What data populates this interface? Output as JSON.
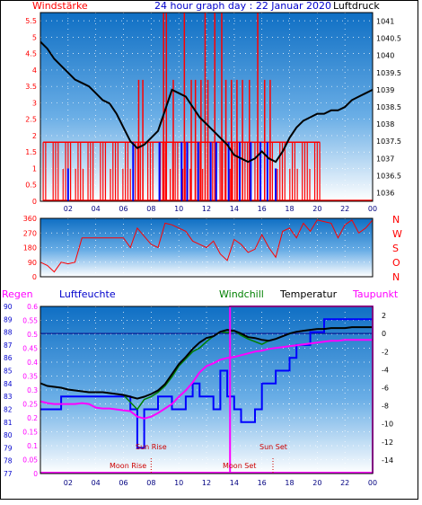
{
  "header": {
    "wind_label": "Windstärke",
    "title": "24 hour graph day : 22 Januar 2020",
    "pressure_label": "Luftdruck"
  },
  "legend": {
    "rain": "Regen",
    "humidity": "Luftfeuchte",
    "windchill": "Windchill",
    "temperature": "Temperatur",
    "dewpoint": "Taupunkt"
  },
  "direction_labels": [
    "N",
    "W",
    "S",
    "O",
    "N"
  ],
  "annotations": {
    "moon_rise": "Moon Rise",
    "sun_rise": "Sun Rise",
    "moon_set": "Moon Set",
    "sun_set": "Sun Set"
  },
  "colors": {
    "wind_speed": "#ff0000",
    "wind_gust": "#0000ff",
    "pressure": "#000000",
    "direction": "#ff0000",
    "humidity": "#0000ff",
    "temperature": "#000000",
    "windchill": "#008000",
    "dewpoint": "#ff00ff",
    "rain": "#ff00ff",
    "humidity_legend": "#0000ff"
  },
  "chart_data": [
    {
      "type": "line",
      "name": "wind-pressure",
      "x_ticks": [
        "02",
        "04",
        "06",
        "08",
        "10",
        "12",
        "14",
        "16",
        "18",
        "20",
        "22",
        "00"
      ],
      "y_left_ticks": [
        "0",
        "0.5",
        "1",
        "1.5",
        "2",
        "2.5",
        "3",
        "3.5",
        "4",
        "4.5",
        "5",
        "5.5"
      ],
      "y_left_range": [
        0,
        5.75
      ],
      "y_right_ticks": [
        "1036",
        "1036.5",
        "1037",
        "1037.5",
        "1038",
        "1038.5",
        "1039",
        "1039.5",
        "1040",
        "1040.5",
        "1041"
      ],
      "y_right_range": [
        1035.75,
        1041.25
      ],
      "pressure": {
        "x": [
          0,
          0.5,
          1,
          1.5,
          2,
          2.5,
          3,
          3.5,
          4,
          4.5,
          5,
          5.5,
          6,
          6.5,
          7,
          7.5,
          8,
          8.5,
          9,
          9.5,
          10,
          10.5,
          11,
          11.5,
          12,
          12.5,
          13,
          13.5,
          14,
          14.5,
          15,
          15.5,
          16,
          16.5,
          17,
          17.5,
          18,
          18.5,
          19,
          19.5,
          20,
          20.5,
          21,
          21.5,
          22,
          22.5,
          23,
          23.5,
          24
        ],
        "values": [
          1040.4,
          1040.2,
          1039.9,
          1039.7,
          1039.5,
          1039.3,
          1039.2,
          1039.1,
          1038.9,
          1038.7,
          1038.6,
          1038.3,
          1037.9,
          1037.5,
          1037.3,
          1037.4,
          1037.6,
          1037.8,
          1038.4,
          1039.0,
          1038.9,
          1038.8,
          1038.5,
          1038.2,
          1038.0,
          1037.8,
          1037.6,
          1037.4,
          1037.1,
          1037.0,
          1036.9,
          1037.0,
          1037.2,
          1037.0,
          1036.9,
          1037.2,
          1037.6,
          1037.9,
          1038.1,
          1038.2,
          1038.3,
          1038.3,
          1038.4,
          1038.4,
          1038.5,
          1038.7,
          1038.8,
          1038.9,
          1039.0
        ]
      },
      "wind_base_level": 1.8,
      "wind_spikes": [
        {
          "x": 8.9,
          "value": 5.75
        },
        {
          "x": 9.1,
          "value": 5.75
        },
        {
          "x": 10.4,
          "value": 5.75
        },
        {
          "x": 11.9,
          "value": 5.75
        },
        {
          "x": 12.6,
          "value": 5.75
        },
        {
          "x": 13.1,
          "value": 5.75
        },
        {
          "x": 15.7,
          "value": 5.75
        },
        {
          "x": 7.1,
          "value": 3.7
        },
        {
          "x": 7.4,
          "value": 3.7
        },
        {
          "x": 9.6,
          "value": 3.7
        },
        {
          "x": 10.9,
          "value": 3.7
        },
        {
          "x": 11.2,
          "value": 3.7
        },
        {
          "x": 11.6,
          "value": 3.7
        },
        {
          "x": 12.1,
          "value": 3.7
        },
        {
          "x": 13.4,
          "value": 3.7
        },
        {
          "x": 13.8,
          "value": 3.7
        },
        {
          "x": 14.2,
          "value": 3.7
        },
        {
          "x": 14.6,
          "value": 3.7
        },
        {
          "x": 15.1,
          "value": 3.7
        },
        {
          "x": 16.2,
          "value": 3.7
        },
        {
          "x": 16.6,
          "value": 3.7
        }
      ],
      "gust_spikes": [
        {
          "x": 2.0,
          "value": 1.0
        },
        {
          "x": 6.7,
          "value": 1.8
        },
        {
          "x": 8.6,
          "value": 1.8
        },
        {
          "x": 10.2,
          "value": 1.8
        },
        {
          "x": 10.6,
          "value": 1.8
        },
        {
          "x": 11.4,
          "value": 1.8
        },
        {
          "x": 12.3,
          "value": 1.8
        },
        {
          "x": 12.7,
          "value": 1.8
        },
        {
          "x": 13.6,
          "value": 1.8
        },
        {
          "x": 14.4,
          "value": 1.8
        },
        {
          "x": 15.2,
          "value": 1.8
        },
        {
          "x": 15.9,
          "value": 1.8
        },
        {
          "x": 16.4,
          "value": 1.8
        },
        {
          "x": 17.0,
          "value": 1.0
        }
      ]
    },
    {
      "type": "line",
      "name": "wind-direction",
      "y_left_ticks": [
        "0",
        "90",
        "180",
        "270",
        "360"
      ],
      "y_range": [
        0,
        360
      ],
      "x": [
        0,
        0.5,
        1,
        1.5,
        2,
        2.5,
        3,
        3.5,
        4,
        4.5,
        5,
        5.5,
        6,
        6.5,
        7,
        7.5,
        8,
        8.5,
        9,
        9.5,
        10,
        10.5,
        11,
        11.5,
        12,
        12.5,
        13,
        13.5,
        14,
        14.5,
        15,
        15.5,
        16,
        16.5,
        17,
        17.5,
        18,
        18.5,
        19,
        19.5,
        20,
        20.5,
        21,
        21.5,
        22,
        22.5,
        23,
        23.5,
        24
      ],
      "values": [
        90,
        70,
        30,
        90,
        80,
        90,
        240,
        240,
        240,
        240,
        240,
        240,
        240,
        180,
        300,
        250,
        200,
        180,
        330,
        320,
        300,
        280,
        220,
        200,
        180,
        220,
        140,
        100,
        230,
        200,
        150,
        170,
        260,
        180,
        120,
        280,
        300,
        240,
        330,
        280,
        350,
        340,
        330,
        240,
        320,
        350,
        270,
        300,
        350
      ]
    },
    {
      "type": "line",
      "name": "temperature-humidity",
      "y_left_ticks": [
        "0",
        "0.05",
        "0.1",
        "0.15",
        "0.2",
        "0.25",
        "0.3",
        "0.35",
        "0.4",
        "0.45",
        "0.5",
        "0.55",
        "0.6"
      ],
      "y_left_range": [
        0,
        0.6
      ],
      "y_humidity_ticks": [
        "77",
        "78",
        "79",
        "80",
        "81",
        "82",
        "83",
        "84",
        "85",
        "86",
        "87",
        "88",
        "89",
        "90"
      ],
      "y_humidity_range": [
        77,
        90
      ],
      "y_right_ticks": [
        "2",
        "0",
        "-2",
        "-4",
        "-6",
        "-8",
        "-10",
        "-12",
        "-14"
      ],
      "y_right_range": [
        -15.5,
        3
      ],
      "x": [
        0,
        0.5,
        1,
        1.5,
        2,
        2.5,
        3,
        3.5,
        4,
        4.5,
        5,
        5.5,
        6,
        6.5,
        7,
        7.5,
        8,
        8.5,
        9,
        9.5,
        10,
        10.5,
        11,
        11.5,
        12,
        12.5,
        13,
        13.5,
        14,
        14.5,
        15,
        15.5,
        16,
        16.5,
        17,
        17.5,
        18,
        18.5,
        19,
        19.5,
        20,
        20.5,
        21,
        21.5,
        22,
        22.5,
        23,
        23.5,
        24
      ],
      "temperature": [
        -5.5,
        -5.8,
        -5.9,
        -6.0,
        -6.2,
        -6.3,
        -6.4,
        -6.5,
        -6.5,
        -6.5,
        -6.6,
        -6.7,
        -6.8,
        -7.0,
        -7.2,
        -7.0,
        -6.7,
        -6.3,
        -5.6,
        -4.5,
        -3.4,
        -2.6,
        -1.7,
        -1.0,
        -0.5,
        -0.3,
        0.2,
        0.4,
        0.3,
        0.0,
        -0.4,
        -0.5,
        -0.7,
        -0.8,
        -0.6,
        -0.3,
        0.0,
        0.2,
        0.3,
        0.4,
        0.5,
        0.5,
        0.6,
        0.6,
        0.6,
        0.7,
        0.7,
        0.7,
        0.7
      ],
      "dewpoint": [
        -7.5,
        -7.7,
        -7.8,
        -7.8,
        -7.8,
        -7.8,
        -7.7,
        -7.8,
        -8.2,
        -8.3,
        -8.3,
        -8.4,
        -8.5,
        -8.6,
        -9.2,
        -9.4,
        -9.2,
        -8.8,
        -8.3,
        -7.8,
        -7.0,
        -6.3,
        -5.4,
        -4.3,
        -3.6,
        -3.3,
        -2.9,
        -2.7,
        -2.6,
        -2.4,
        -2.2,
        -2.0,
        -1.9,
        -1.7,
        -1.6,
        -1.5,
        -1.4,
        -1.3,
        -1.2,
        -1.1,
        -1.0,
        -0.9,
        -0.8,
        -0.8,
        -0.7,
        -0.7,
        -0.7,
        -0.7,
        -0.7
      ],
      "humidity": [
        82,
        82,
        82,
        83,
        83,
        83,
        83,
        83,
        83,
        83,
        83,
        83,
        83,
        82,
        79,
        82,
        82,
        83,
        83,
        82,
        82,
        83,
        84,
        83,
        83,
        82,
        85,
        83,
        82,
        81,
        81,
        82,
        84,
        84,
        85,
        85,
        86,
        87,
        87,
        88,
        88,
        89,
        89,
        89,
        89,
        89,
        89,
        89,
        89
      ],
      "windchill": [
        -5.5,
        -5.8,
        -5.9,
        -6.0,
        -6.2,
        -6.3,
        -6.4,
        -6.5,
        -6.5,
        -6.5,
        -6.6,
        -6.7,
        -6.8,
        -7.6,
        -8.4,
        -7.3,
        -7.0,
        -6.5,
        -5.8,
        -4.8,
        -3.6,
        -2.8,
        -2.0,
        -1.6,
        -0.9,
        -0.3,
        0.2,
        0.1,
        0.3,
        -0.2,
        -0.6,
        -0.9,
        -1.2,
        -0.8,
        -0.6,
        -0.3,
        0.0,
        0.2,
        0.3,
        0.4,
        0.5,
        0.5,
        0.6,
        0.6,
        0.6,
        0.7,
        0.7,
        0.7,
        0.7
      ],
      "rain_total": 0,
      "zero_temp_line": 0,
      "moon_set_x": 13.7,
      "sun_rise_x": 8.0,
      "sun_set_x": 16.8
    }
  ]
}
